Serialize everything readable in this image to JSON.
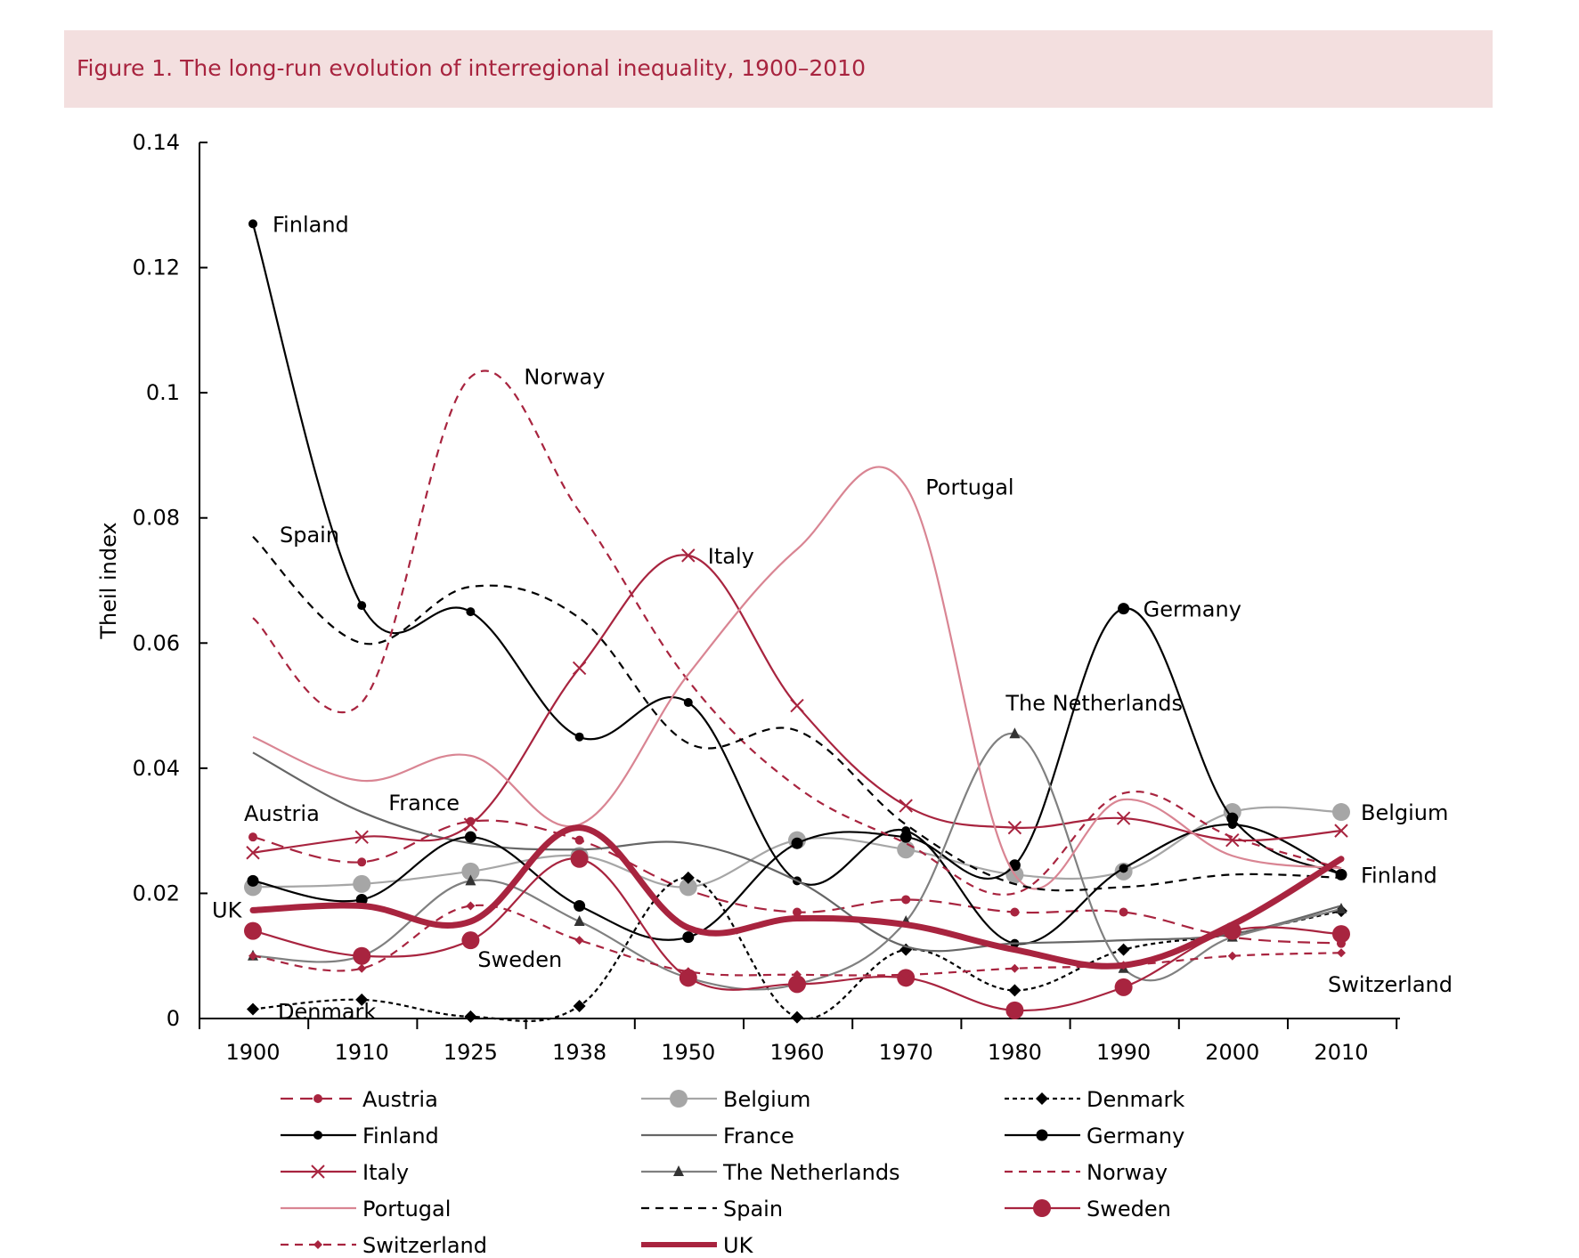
{
  "figure": {
    "title": "Figure 1. The long-run evolution of interregional inequality, 1900–2010"
  },
  "chart_data": {
    "type": "line",
    "title": "Figure 1. The long-run evolution of interregional inequality, 1900–2010",
    "xlabel": "",
    "ylabel": "Theil index",
    "ylim": [
      0,
      0.14
    ],
    "yticks": [
      "0",
      "0.02",
      "0.04",
      "0.06",
      "0.08",
      "0.1",
      "0.12",
      "0.14"
    ],
    "ytick_values": [
      0,
      0.02,
      0.04,
      0.06,
      0.08,
      0.1,
      0.12,
      0.14
    ],
    "categories": [
      "1900",
      "1910",
      "1925",
      "1938",
      "1950",
      "1960",
      "1970",
      "1980",
      "1990",
      "2000",
      "2010"
    ],
    "grid": false,
    "legend_position": "bottom",
    "colors": {
      "red": "#a8243f",
      "pink": "#d98593",
      "black": "#000000",
      "gray": "#666666",
      "lightgray": "#a6a6a6"
    },
    "series": [
      {
        "name": "Austria",
        "color": "#a8243f",
        "dash": "long",
        "marker": "dot-small",
        "width": "thin",
        "values": [
          0.029,
          0.025,
          0.0315,
          0.0285,
          0.0205,
          0.017,
          0.019,
          0.017,
          0.017,
          0.013,
          0.012
        ]
      },
      {
        "name": "Belgium",
        "color": "#a6a6a6",
        "dash": "solid",
        "marker": "dot-large",
        "width": "thin",
        "values": [
          0.021,
          0.0215,
          0.0235,
          0.026,
          0.021,
          0.0285,
          0.027,
          0.023,
          0.0235,
          0.033,
          0.033
        ]
      },
      {
        "name": "Denmark",
        "color": "#000000",
        "dash": "short",
        "marker": "diamond",
        "width": "thin",
        "values": [
          0.0015,
          0.003,
          0.0003,
          0.002,
          0.0225,
          0.0002,
          0.011,
          0.0045,
          0.011,
          0.0135,
          0.0172
        ]
      },
      {
        "name": "Finland",
        "color": "#000000",
        "dash": "solid",
        "marker": "dot-small",
        "width": "thin",
        "values": [
          0.127,
          0.066,
          0.065,
          0.045,
          0.0505,
          0.022,
          0.03,
          0.012,
          0.024,
          0.031,
          0.023
        ]
      },
      {
        "name": "France",
        "color": "#666666",
        "dash": "solid",
        "marker": "none",
        "width": "thin",
        "values": [
          0.0425,
          0.033,
          0.028,
          0.027,
          0.028,
          0.022,
          0.0115,
          0.012,
          0.0125,
          0.0135,
          0.018
        ]
      },
      {
        "name": "Germany",
        "color": "#000000",
        "dash": "solid",
        "marker": "dot-medium",
        "width": "thin",
        "values": [
          0.022,
          0.019,
          0.029,
          0.018,
          0.013,
          0.028,
          0.029,
          0.0245,
          0.0655,
          0.032,
          0.023
        ]
      },
      {
        "name": "Italy",
        "color": "#a8243f",
        "dash": "solid",
        "marker": "cross",
        "width": "thin",
        "values": [
          0.0265,
          0.029,
          0.031,
          0.056,
          0.074,
          0.05,
          0.034,
          0.0305,
          0.032,
          0.0285,
          0.03
        ]
      },
      {
        "name": "The Netherlands",
        "color": "#808080",
        "dash": "solid",
        "marker": "triangle",
        "width": "thin",
        "values": [
          0.01,
          0.01,
          0.022,
          0.0155,
          0.0065,
          0.0055,
          0.0155,
          0.0455,
          0.008,
          0.013,
          0.0175
        ]
      },
      {
        "name": "Norway",
        "color": "#a8243f",
        "dash": "medium",
        "marker": "none",
        "width": "thin",
        "values": [
          0.064,
          0.0505,
          0.1025,
          0.081,
          0.054,
          0.037,
          0.028,
          0.02,
          0.036,
          0.029,
          0.024
        ]
      },
      {
        "name": "Portugal",
        "color": "#d98593",
        "dash": "solid",
        "marker": "none",
        "width": "thin",
        "values": [
          0.045,
          0.038,
          0.042,
          0.031,
          0.055,
          0.075,
          0.085,
          0.023,
          0.035,
          0.026,
          0.024
        ]
      },
      {
        "name": "Spain",
        "color": "#000000",
        "dash": "medium",
        "marker": "none",
        "width": "thin",
        "values": [
          0.077,
          0.06,
          0.069,
          0.064,
          0.044,
          0.046,
          0.031,
          0.0215,
          0.021,
          0.023,
          0.0225
        ]
      },
      {
        "name": "Sweden",
        "color": "#a8243f",
        "dash": "solid",
        "marker": "dot-large",
        "width": "thin",
        "values": [
          0.014,
          0.01,
          0.0125,
          0.0255,
          0.0065,
          0.0055,
          0.0065,
          0.0013,
          0.005,
          0.014,
          0.0135
        ]
      },
      {
        "name": "Switzerland",
        "color": "#a8243f",
        "dash": "medium",
        "marker": "diamond-small",
        "width": "thin",
        "values": [
          0.01,
          0.008,
          0.018,
          0.0125,
          0.0075,
          0.007,
          0.007,
          0.008,
          0.0085,
          0.01,
          0.0105
        ]
      },
      {
        "name": "UK",
        "color": "#a8243f",
        "dash": "solid",
        "marker": "none",
        "width": "thick",
        "values": [
          0.0173,
          0.018,
          0.0155,
          0.0305,
          0.0145,
          0.016,
          0.015,
          0.011,
          0.0085,
          0.015,
          0.0255
        ]
      }
    ],
    "annotations": [
      {
        "text": "Finland",
        "series": "Finland",
        "at": "1900",
        "anchor": "right"
      },
      {
        "text": "Spain",
        "series": "Spain",
        "at": "1900",
        "anchor": "right-above"
      },
      {
        "text": "Norway",
        "series": "Norway",
        "at": "1925",
        "anchor": "right"
      },
      {
        "text": "Portugal",
        "series": "Portugal",
        "at": "1970",
        "anchor": "right"
      },
      {
        "text": "Italy",
        "series": "Italy",
        "at": "1950",
        "anchor": "right"
      },
      {
        "text": "Germany",
        "series": "Germany",
        "at": "1990",
        "anchor": "right"
      },
      {
        "text": "The Netherlands",
        "series": "The Netherlands",
        "at": "1980",
        "anchor": "above"
      },
      {
        "text": "Austria",
        "series": "Austria",
        "at": "1900",
        "anchor": "above"
      },
      {
        "text": "France",
        "series": "France",
        "at": "1910",
        "anchor": "above-right"
      },
      {
        "text": "UK",
        "series": "UK",
        "at": "1900",
        "anchor": "left"
      },
      {
        "text": "Sweden",
        "series": "Sweden",
        "at": "1925",
        "anchor": "below"
      },
      {
        "text": "Denmark",
        "series": "Denmark",
        "at": "1900",
        "anchor": "right"
      },
      {
        "text": "Belgium",
        "series": "Belgium",
        "at": "2010",
        "anchor": "right"
      },
      {
        "text": "Finland",
        "series": "Finland",
        "at": "2010",
        "anchor": "right"
      },
      {
        "text": "Switzerland",
        "series": "Switzerland",
        "at": "2010",
        "anchor": "below"
      }
    ]
  }
}
